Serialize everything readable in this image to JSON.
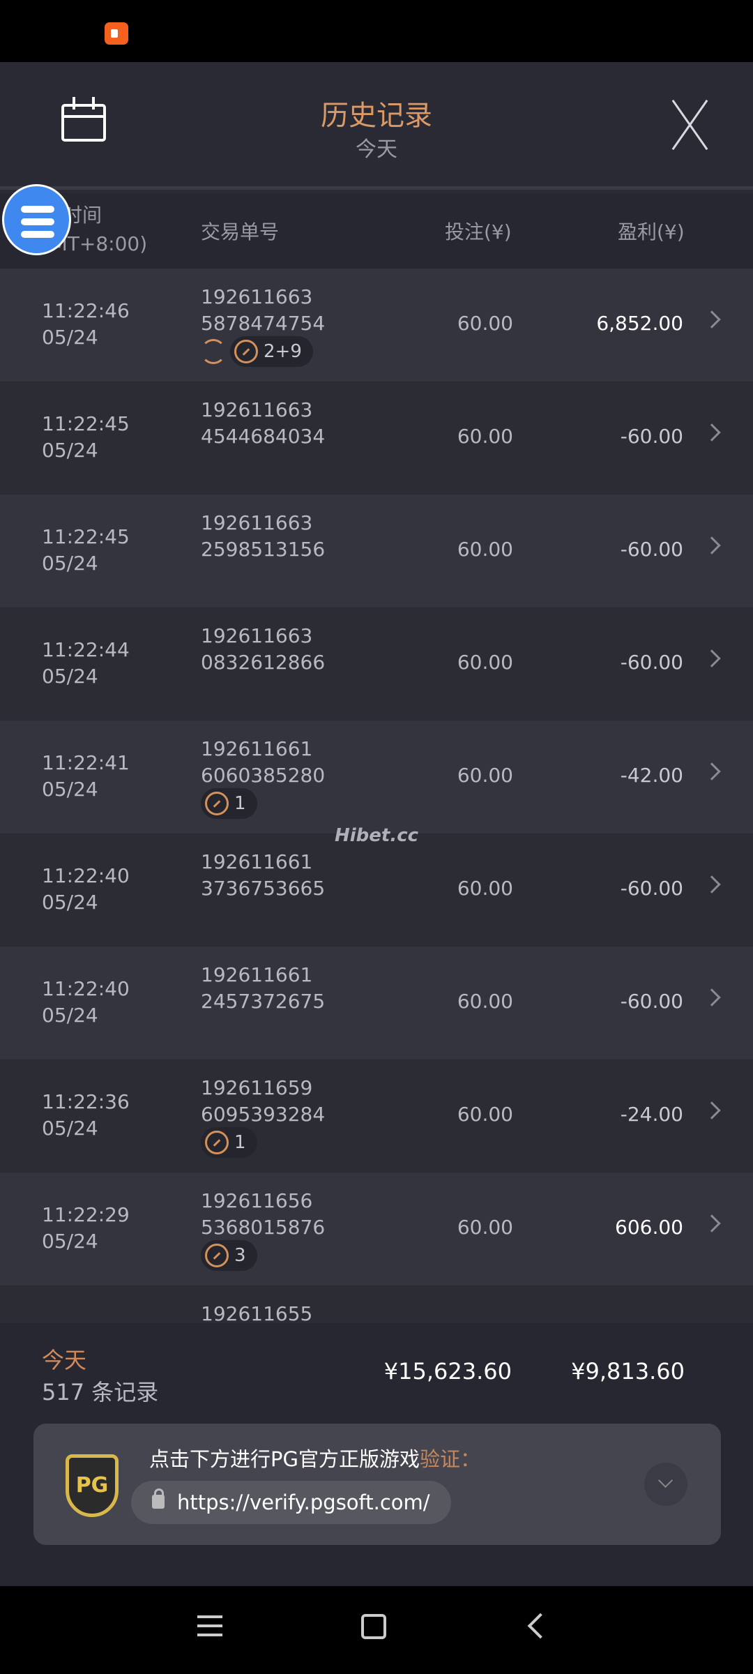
{
  "header": {
    "title": "历史记录",
    "subtitle": "今天"
  },
  "columns": {
    "time": "时间",
    "timezone": "(GMT+8:00)",
    "id": "交易单号",
    "bet": "投注(¥)",
    "profit": "盈利(¥)"
  },
  "rows": [
    {
      "time": "11:22:46",
      "date": "05/24",
      "id1": "192611663",
      "id2": "5878474754",
      "bet": "60.00",
      "profit": "6,852.00",
      "win": true,
      "spin": true,
      "badge": "2+9"
    },
    {
      "time": "11:22:45",
      "date": "05/24",
      "id1": "192611663",
      "id2": "4544684034",
      "bet": "60.00",
      "profit": "-60.00"
    },
    {
      "time": "11:22:45",
      "date": "05/24",
      "id1": "192611663",
      "id2": "2598513156",
      "bet": "60.00",
      "profit": "-60.00"
    },
    {
      "time": "11:22:44",
      "date": "05/24",
      "id1": "192611663",
      "id2": "0832612866",
      "bet": "60.00",
      "profit": "-60.00"
    },
    {
      "time": "11:22:41",
      "date": "05/24",
      "id1": "192611661",
      "id2": "6060385280",
      "bet": "60.00",
      "profit": "-42.00",
      "badge": "1"
    },
    {
      "time": "11:22:40",
      "date": "05/24",
      "id1": "192611661",
      "id2": "3736753665",
      "bet": "60.00",
      "profit": "-60.00"
    },
    {
      "time": "11:22:40",
      "date": "05/24",
      "id1": "192611661",
      "id2": "2457372675",
      "bet": "60.00",
      "profit": "-60.00"
    },
    {
      "time": "11:22:36",
      "date": "05/24",
      "id1": "192611659",
      "id2": "6095393284",
      "bet": "60.00",
      "profit": "-24.00",
      "badge": "1"
    },
    {
      "time": "11:22:29",
      "date": "05/24",
      "id1": "192611656",
      "id2": "5368015876",
      "bet": "60.00",
      "profit": "606.00",
      "win": true,
      "badge": "3"
    },
    {
      "id1": "192611655"
    }
  ],
  "watermark": "Hibet.cc",
  "footer": {
    "period": "今天",
    "count": "517 条记录",
    "total_bet": "¥15,623.60",
    "total_profit": "¥9,813.60"
  },
  "verify": {
    "logo": "PG",
    "text": "点击下方进行PG官方正版游戏",
    "highlight": "验证：",
    "url": "https://verify.pgsoft.com/"
  },
  "colors": {
    "accent": "#d99a68",
    "fab": "#3e88f0"
  }
}
